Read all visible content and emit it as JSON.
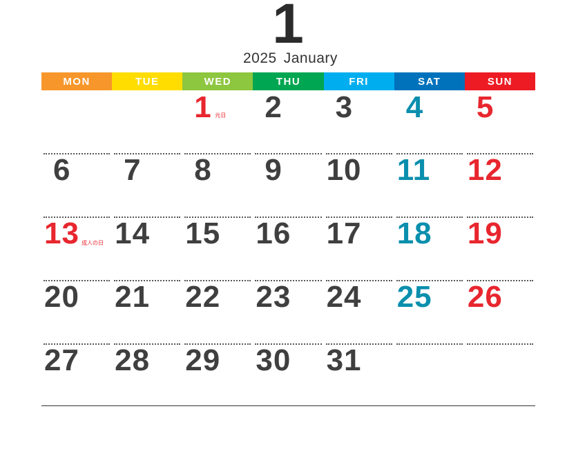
{
  "month_number": "1",
  "year": "2025",
  "month_name": "January",
  "colors": {
    "weekday": "#3f3f3f",
    "saturday": "#0a8fad",
    "sunday": "#e8262e",
    "holiday": "#e8262e"
  },
  "weekdays": [
    {
      "label": "MON",
      "color": "#f7962a"
    },
    {
      "label": "TUE",
      "color": "#ffdd00"
    },
    {
      "label": "WED",
      "color": "#8dc63f"
    },
    {
      "label": "THU",
      "color": "#00a651"
    },
    {
      "label": "FRI",
      "color": "#00aeef"
    },
    {
      "label": "SAT",
      "color": "#0072bc"
    },
    {
      "label": "SUN",
      "color": "#ed1c24"
    }
  ],
  "weeks": [
    [
      null,
      null,
      {
        "day": "1",
        "holiday": "元日"
      },
      {
        "day": "2"
      },
      {
        "day": "3"
      },
      {
        "day": "4"
      },
      {
        "day": "5"
      }
    ],
    [
      {
        "day": "6"
      },
      {
        "day": "7"
      },
      {
        "day": "8"
      },
      {
        "day": "9"
      },
      {
        "day": "10"
      },
      {
        "day": "11"
      },
      {
        "day": "12"
      }
    ],
    [
      {
        "day": "13",
        "holiday": "成人の日"
      },
      {
        "day": "14"
      },
      {
        "day": "15"
      },
      {
        "day": "16"
      },
      {
        "day": "17"
      },
      {
        "day": "18"
      },
      {
        "day": "19"
      }
    ],
    [
      {
        "day": "20"
      },
      {
        "day": "21"
      },
      {
        "day": "22"
      },
      {
        "day": "23"
      },
      {
        "day": "24"
      },
      {
        "day": "25"
      },
      {
        "day": "26"
      }
    ],
    [
      {
        "day": "27"
      },
      {
        "day": "28"
      },
      {
        "day": "29"
      },
      {
        "day": "30"
      },
      {
        "day": "31"
      },
      null,
      null
    ]
  ]
}
